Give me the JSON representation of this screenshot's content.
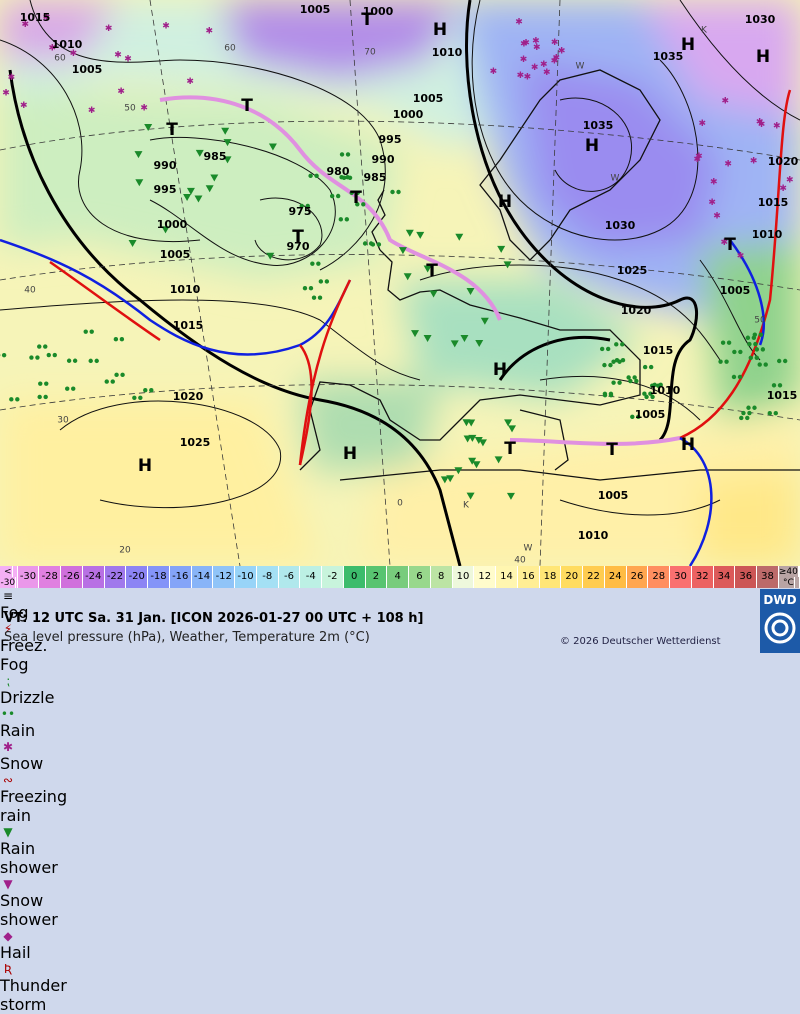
{
  "map": {
    "pressure_labels": [
      "1015",
      "1010",
      "1005",
      "1005",
      "1000",
      "1010",
      "1005",
      "1000",
      "995",
      "990",
      "985",
      "985",
      "980",
      "990",
      "995",
      "975",
      "970",
      "1000",
      "1005",
      "1010",
      "1015",
      "1020",
      "1025",
      "1030",
      "1035",
      "1035",
      "1030",
      "1025",
      "1020",
      "1015",
      "1010",
      "1005",
      "1005",
      "1010",
      "1020",
      "1015",
      "1010",
      "1005",
      "1015"
    ],
    "systems": [
      "T",
      "H",
      "H",
      "H",
      "T",
      "T",
      "H",
      "H",
      "T",
      "T",
      "T",
      "H",
      "H",
      "H",
      "T",
      "T",
      "H",
      "T"
    ],
    "grid_labels": [
      "60",
      "50",
      "40",
      "30",
      "20",
      "70",
      "60",
      "50",
      "40",
      "0",
      "W",
      "W",
      "K",
      "W",
      "K"
    ]
  },
  "temperature_scale": {
    "below_sign": "<",
    "below_value": "-30",
    "below_color": "#f4b0f4",
    "steps": [
      {
        "label": "-30",
        "color": "#ea98ea"
      },
      {
        "label": "-28",
        "color": "#e080e0"
      },
      {
        "label": "-26",
        "color": "#d070dc"
      },
      {
        "label": "-24",
        "color": "#b870e4"
      },
      {
        "label": "-22",
        "color": "#a078ec"
      },
      {
        "label": "-20",
        "color": "#8c84f4"
      },
      {
        "label": "-18",
        "color": "#8494f8"
      },
      {
        "label": "-16",
        "color": "#84a4f8"
      },
      {
        "label": "-14",
        "color": "#88b4f8"
      },
      {
        "label": "-12",
        "color": "#90c4f8"
      },
      {
        "label": "-10",
        "color": "#98d4f8"
      },
      {
        "label": "-8",
        "color": "#a4e0f4"
      },
      {
        "label": "-6",
        "color": "#b0e8ec"
      },
      {
        "label": "-4",
        "color": "#bcf0e4"
      },
      {
        "label": "-2",
        "color": "#c8f4dc"
      },
      {
        "label": "0",
        "color": "#3cbc6c"
      },
      {
        "label": "2",
        "color": "#58c470"
      },
      {
        "label": "4",
        "color": "#78cc7c"
      },
      {
        "label": "6",
        "color": "#98d88c"
      },
      {
        "label": "8",
        "color": "#bce4a4"
      },
      {
        "label": "10",
        "color": "#eef8dc"
      },
      {
        "label": "12",
        "color": "#fffccc"
      },
      {
        "label": "14",
        "color": "#fff6b0"
      },
      {
        "label": "16",
        "color": "#ffee94"
      },
      {
        "label": "18",
        "color": "#ffe676"
      },
      {
        "label": "20",
        "color": "#ffdc60"
      },
      {
        "label": "22",
        "color": "#ffcc50"
      },
      {
        "label": "24",
        "color": "#ffbc44"
      },
      {
        "label": "26",
        "color": "#ffa650"
      },
      {
        "label": "28",
        "color": "#ff8e60"
      },
      {
        "label": "30",
        "color": "#fa7070"
      },
      {
        "label": "32",
        "color": "#ec6262"
      },
      {
        "label": "34",
        "color": "#dc5a5a"
      },
      {
        "label": "36",
        "color": "#cc5656"
      },
      {
        "label": "38",
        "color": "#bc6a6a"
      }
    ],
    "above_label": "≥40",
    "unit": "°C",
    "above_color": "#b8a4a4"
  },
  "legend": [
    "Fog",
    "Freez. Fog",
    "Drizzle",
    "Rain",
    "Snow",
    "Freezing rain",
    "Rain shower",
    "Snow shower",
    "Hail",
    "Thunder storm"
  ],
  "footer": {
    "valid_time": "VT: 12 UTC Sa.   31 Jan. [ICON 2026-01-27  00 UTC + 108 h]",
    "description": "Sea level pressure (hPa), Weather, Temperature 2m (°C)",
    "copyright": "© 2026 Deutscher Wetterdienst",
    "logo": "DWD"
  }
}
